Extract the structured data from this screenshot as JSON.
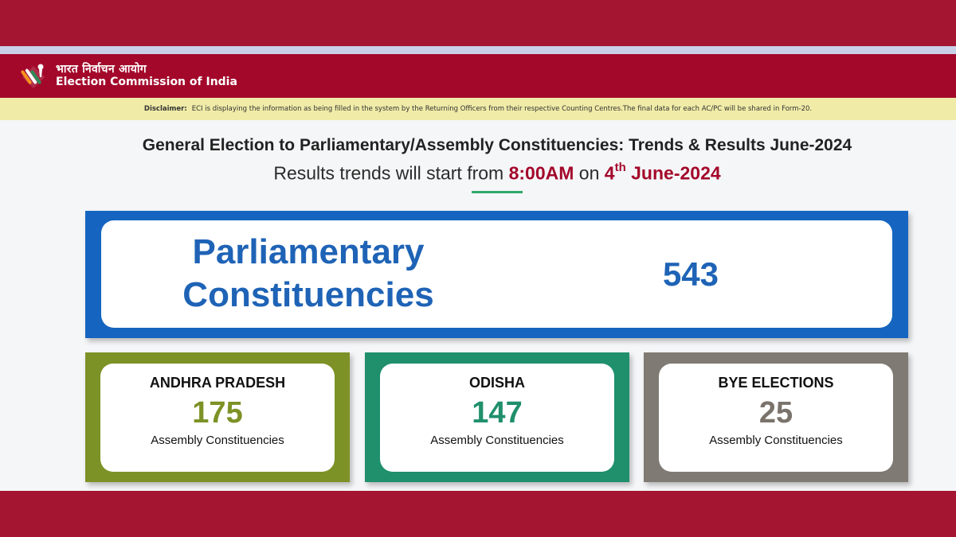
{
  "header": {
    "hindi_title": "भारत निर्वाचन आयोग",
    "english_title": "Election Commission of India",
    "logo_icon": "voting-finger-icon"
  },
  "disclaimer": {
    "label": "Disclaimer:",
    "text": "ECI is displaying the information as being filled in the system by the Returning Officers from their respective Counting Centres.The final data for each AC/PC will be shared in Form-20."
  },
  "main": {
    "title": "General Election to Parliamentary/Assembly Constituencies: Trends & Results June-2024",
    "subtitle_prefix": "Results trends will start from",
    "subtitle_time": "8:00AM",
    "subtitle_on": "on",
    "subtitle_day": "4",
    "subtitle_suffix": "th",
    "subtitle_month": "June-2024"
  },
  "parliamentary": {
    "label_line1": "Parliamentary",
    "label_line2": "Constituencies",
    "value": "543",
    "color": "#1565c0"
  },
  "cards": [
    {
      "name": "ANDHRA PRADESH",
      "value": "175",
      "sub": "Assembly Constituencies",
      "color": "#7c9226",
      "value_color": "#7c9226"
    },
    {
      "name": "ODISHA",
      "value": "147",
      "sub": "Assembly Constituencies",
      "color": "#1f8f6c",
      "value_color": "#1f8f6c"
    },
    {
      "name": "BYE ELECTIONS",
      "value": "25",
      "sub": "Assembly Constituencies",
      "color": "#7f7a73",
      "value_color": "#7a736b"
    }
  ],
  "colors": {
    "brand_red": "#a3082a",
    "accent_green": "#2fa86b"
  }
}
